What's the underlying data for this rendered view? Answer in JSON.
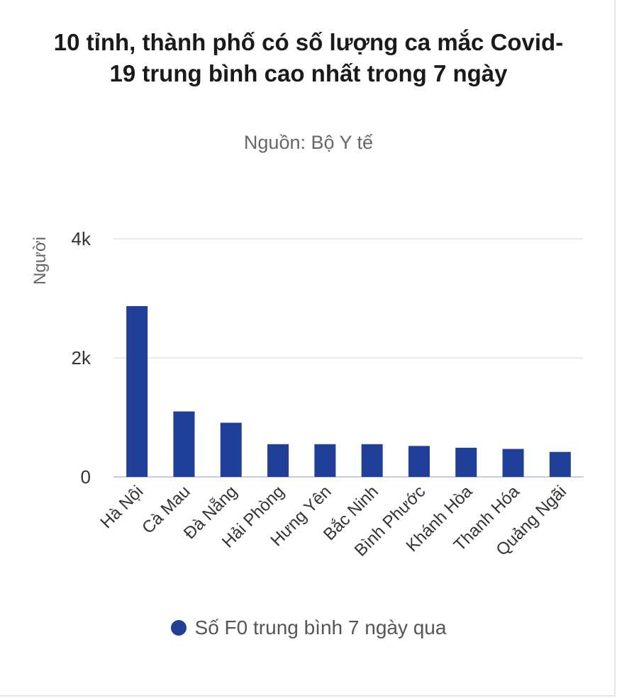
{
  "chart_data": {
    "type": "bar",
    "title": "10 tỉnh, thành phố có số lượng ca mắc Covid-19 trung bình cao nhất trong 7 ngày",
    "subtitle": "Nguồn: Bộ Y tế",
    "ylabel": "Người",
    "xlabel": "",
    "ylim": [
      0,
      4000
    ],
    "yticks": [
      {
        "value": 0,
        "label": "0"
      },
      {
        "value": 2000,
        "label": "2k"
      },
      {
        "value": 4000,
        "label": "4k"
      }
    ],
    "categories": [
      "Hà Nội",
      "Cà Mau",
      "Đà Nẵng",
      "Hải Phòng",
      "Hưng Yên",
      "Bắc Ninh",
      "Bình Phước",
      "Khánh Hòa",
      "Thanh Hóa",
      "Quảng Ngãi"
    ],
    "series": [
      {
        "name": "Số F0 trung bình 7 ngày qua",
        "color": "#1f3f99",
        "values": [
          2870,
          1100,
          910,
          550,
          550,
          550,
          520,
          490,
          470,
          420
        ]
      }
    ],
    "grid": true,
    "legend": "bottom-center"
  }
}
